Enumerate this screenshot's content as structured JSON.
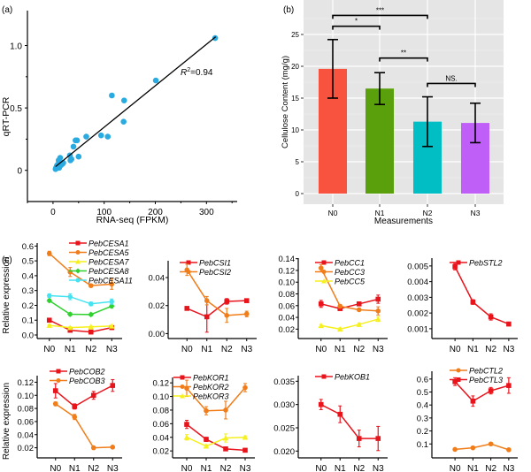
{
  "chart_data": [
    {
      "id": "a",
      "panel_label": "(a)",
      "type": "scatter",
      "xlabel": "RNA-seq (FPKM)",
      "ylabel": "qRT-PCR",
      "xlim": [
        -50,
        360
      ],
      "ylim": [
        -0.25,
        1.28
      ],
      "xticks": [
        0,
        100,
        200,
        300
      ],
      "yticks": [
        0,
        0.5,
        1.0
      ],
      "ytick_labels": [
        "0",
        "0.5",
        "1.0"
      ],
      "annotation": {
        "r2_label": "R",
        "r2_sup": "2",
        "r2_value": "=0.94"
      },
      "color": "#29abe2",
      "fit_line": {
        "x": [
          5,
          318
        ],
        "y": [
          0.03,
          1.07
        ]
      },
      "points": [
        {
          "x": 5,
          "y": 0.01
        },
        {
          "x": 6,
          "y": 0.02
        },
        {
          "x": 7,
          "y": 0.03
        },
        {
          "x": 8,
          "y": 0.04
        },
        {
          "x": 9,
          "y": 0.02
        },
        {
          "x": 10,
          "y": 0.05
        },
        {
          "x": 11,
          "y": 0.08
        },
        {
          "x": 12,
          "y": 0.02
        },
        {
          "x": 13,
          "y": 0.06
        },
        {
          "x": 14,
          "y": 0.1
        },
        {
          "x": 15,
          "y": 0.04
        },
        {
          "x": 18,
          "y": 0.05
        },
        {
          "x": 20,
          "y": 0.06
        },
        {
          "x": 33,
          "y": 0.12
        },
        {
          "x": 34,
          "y": 0.08
        },
        {
          "x": 36,
          "y": 0.09
        },
        {
          "x": 40,
          "y": 0.19
        },
        {
          "x": 44,
          "y": 0.24
        },
        {
          "x": 47,
          "y": 0.24
        },
        {
          "x": 50,
          "y": 0.11
        },
        {
          "x": 65,
          "y": 0.27
        },
        {
          "x": 94,
          "y": 0.28
        },
        {
          "x": 107,
          "y": 0.27
        },
        {
          "x": 115,
          "y": 0.6
        },
        {
          "x": 138,
          "y": 0.39
        },
        {
          "x": 139,
          "y": 0.56
        },
        {
          "x": 201,
          "y": 0.72
        },
        {
          "x": 317,
          "y": 1.06
        }
      ]
    },
    {
      "id": "b",
      "panel_label": "(b)",
      "type": "bar",
      "xlabel": "Measurements",
      "ylabel": "Cellulose Content (mg/g)",
      "ylim": [
        -2.5,
        29
      ],
      "yticks": [
        0,
        5,
        10,
        15,
        20,
        25
      ],
      "categories": [
        "N0",
        "N1",
        "N2",
        "N3"
      ],
      "values": [
        19.6,
        16.5,
        11.3,
        11.1
      ],
      "errors": [
        4.6,
        2.5,
        3.9,
        3.1
      ],
      "colors": [
        "#f8533e",
        "#5aa00c",
        "#00bec4",
        "#c05ff7"
      ],
      "background": "#e5e5e5",
      "grid": true,
      "significance": [
        {
          "from": 0,
          "to": 2,
          "label": "***",
          "level": 28.0
        },
        {
          "from": 0,
          "to": 1,
          "label": "*",
          "level": 26.3
        },
        {
          "from": 1,
          "to": 2,
          "label": "**",
          "level": 21.3
        },
        {
          "from": 2,
          "to": 3,
          "label": "NS.",
          "level": 17.3
        }
      ]
    },
    {
      "id": "c1",
      "panel_label": "(c)",
      "type": "line",
      "ylabel": "Relative expression",
      "categories": [
        "N0",
        "N1",
        "N2",
        "N3"
      ],
      "ylim": [
        0,
        0.62
      ],
      "yticks": [
        0.0,
        0.1,
        0.2,
        0.3,
        0.4,
        0.5,
        0.6
      ],
      "ytick_labels": [
        "0.0",
        "0.1",
        "0.2",
        "0.3",
        "0.4",
        "0.5",
        "0.6"
      ],
      "series": [
        {
          "name": "PebCESA1",
          "color": "#e8141c",
          "marker": "square",
          "values": [
            0.1,
            0.032,
            0.02,
            0.05
          ],
          "errors": [
            0.008,
            0.005,
            0.005,
            0.006
          ]
        },
        {
          "name": "PebCESA5",
          "color": "#f07d19",
          "marker": "circle",
          "values": [
            0.55,
            0.425,
            0.333,
            0.343
          ],
          "errors": [
            0.015,
            0.03,
            0.01,
            0.035
          ]
        },
        {
          "name": "PebCESA7",
          "color": "#f5f01e",
          "marker": "triangle",
          "values": [
            0.065,
            0.05,
            0.055,
            0.06
          ],
          "errors": [
            0.005,
            0.005,
            0.005,
            0.005
          ]
        },
        {
          "name": "PebCESA8",
          "color": "#2ed12e",
          "marker": "diamond",
          "values": [
            0.232,
            0.14,
            0.138,
            0.195
          ],
          "errors": [
            0.01,
            0.01,
            0.01,
            0.012
          ]
        },
        {
          "name": "PebCESA11",
          "color": "#45e3f2",
          "marker": "star",
          "values": [
            0.265,
            0.258,
            0.21,
            0.225
          ],
          "errors": [
            0.012,
            0.02,
            0.012,
            0.018
          ]
        }
      ]
    },
    {
      "id": "c2",
      "type": "line",
      "categories": [
        "N0",
        "N1",
        "N2",
        "N3"
      ],
      "ylim": [
        -0.001,
        0.052
      ],
      "yticks": [
        0.0,
        0.02,
        0.04
      ],
      "ytick_labels": [
        "0.00",
        "0.02",
        "0.04"
      ],
      "series": [
        {
          "name": "PebCSI1",
          "color": "#e8141c",
          "marker": "square",
          "values": [
            0.018,
            0.012,
            0.023,
            0.0235
          ],
          "errors": [
            0.001,
            0.011,
            0.002,
            0.001
          ]
        },
        {
          "name": "PebCSI2",
          "color": "#f07d19",
          "marker": "circle",
          "values": [
            0.0455,
            0.0235,
            0.013,
            0.014
          ],
          "errors": [
            0.004,
            0.003,
            0.005,
            0.002
          ]
        }
      ]
    },
    {
      "id": "c3",
      "type": "line",
      "categories": [
        "N0",
        "N1",
        "N2",
        "N3"
      ],
      "ylim": [
        0.01,
        0.141
      ],
      "yticks": [
        0.02,
        0.04,
        0.06,
        0.08,
        0.1,
        0.12,
        0.14
      ],
      "ytick_labels": [
        "0.02",
        "0.04",
        "0.06",
        "0.08",
        "0.10",
        "0.12",
        "0.14"
      ],
      "series": [
        {
          "name": "PebCC1",
          "color": "#e8141c",
          "marker": "square",
          "values": [
            0.063,
            0.055,
            0.063,
            0.071
          ],
          "errors": [
            0.006,
            0.003,
            0.002,
            0.007
          ]
        },
        {
          "name": "PebCC3",
          "color": "#f07d19",
          "marker": "circle",
          "values": [
            0.124,
            0.059,
            0.053,
            0.051
          ],
          "errors": [
            0.006,
            0.003,
            0.002,
            0.007
          ]
        },
        {
          "name": "PebCC5",
          "color": "#f5f01e",
          "marker": "triangle",
          "values": [
            0.026,
            0.02,
            0.028,
            0.037
          ],
          "errors": [
            0.002,
            0.002,
            0.002,
            0.004
          ]
        }
      ]
    },
    {
      "id": "c4",
      "type": "line",
      "categories": [
        "N0",
        "N1",
        "N2",
        "N3"
      ],
      "ylim": [
        0.0006,
        0.0055
      ],
      "yticks": [
        0.001,
        0.002,
        0.003,
        0.004,
        0.005
      ],
      "ytick_labels": [
        "0.001",
        "0.002",
        "0.003",
        "0.004",
        "0.005"
      ],
      "series": [
        {
          "name": "PebSTL2",
          "color": "#e8141c",
          "marker": "square",
          "values": [
            0.00495,
            0.0027,
            0.00175,
            0.0013
          ],
          "errors": [
            0.0002,
            0.00015,
            0.0002,
            0.00012
          ]
        }
      ]
    },
    {
      "id": "c5",
      "type": "line",
      "ylabel": "Relative expression",
      "categories": [
        "N0",
        "N1",
        "N2",
        "N3"
      ],
      "ylim": [
        0.01,
        0.13
      ],
      "yticks": [
        0.02,
        0.04,
        0.06,
        0.08,
        0.1,
        0.12
      ],
      "ytick_labels": [
        "0.02",
        "0.04",
        "0.06",
        "0.08",
        "0.10",
        "0.12"
      ],
      "series": [
        {
          "name": "PebCOB2",
          "color": "#e8141c",
          "marker": "square",
          "values": [
            0.107,
            0.083,
            0.1,
            0.115
          ],
          "errors": [
            0.011,
            0.004,
            0.006,
            0.009
          ]
        },
        {
          "name": "PebCOB3",
          "color": "#f07d19",
          "marker": "circle",
          "values": [
            0.087,
            0.067,
            0.02,
            0.021
          ],
          "errors": [
            0.003,
            0.004,
            0.001,
            0.001
          ]
        }
      ]
    },
    {
      "id": "c6",
      "type": "line",
      "categories": [
        "N0",
        "N1",
        "N2",
        "N3"
      ],
      "ylim": [
        0.015,
        0.128
      ],
      "yticks": [
        0.02,
        0.04,
        0.06,
        0.08,
        0.1,
        0.12
      ],
      "ytick_labels": [
        "0.02",
        "0.04",
        "0.06",
        "0.08",
        "0.10",
        "0.12"
      ],
      "series": [
        {
          "name": "PebKOR1",
          "color": "#e8141c",
          "marker": "square",
          "values": [
            0.059,
            0.037,
            0.023,
            0.021
          ],
          "errors": [
            0.006,
            0.003,
            0.001,
            0.001
          ]
        },
        {
          "name": "PebKOR2",
          "color": "#f07d19",
          "marker": "circle",
          "values": [
            0.112,
            0.079,
            0.08,
            0.113
          ],
          "errors": [
            0.012,
            0.006,
            0.013,
            0.006
          ]
        },
        {
          "name": "PebKOR3",
          "color": "#f5f01e",
          "marker": "triangle",
          "values": [
            0.04,
            0.027,
            0.039,
            0.04
          ],
          "errors": [
            0.004,
            0.002,
            0.006,
            0.002
          ]
        }
      ]
    },
    {
      "id": "c7",
      "type": "line",
      "categories": [
        "N0",
        "N1",
        "N2",
        "N3"
      ],
      "ylim": [
        0.0193,
        0.0362
      ],
      "yticks": [
        0.02,
        0.025,
        0.03,
        0.035
      ],
      "ytick_labels": [
        "0.020",
        "0.025",
        "0.030",
        "0.035"
      ],
      "series": [
        {
          "name": "PebKOB1",
          "color": "#e8141c",
          "marker": "square",
          "values": [
            0.03,
            0.0279,
            0.0227,
            0.0227
          ],
          "errors": [
            0.0011,
            0.0018,
            0.0018,
            0.0026
          ]
        }
      ]
    },
    {
      "id": "c8",
      "type": "line",
      "categories": [
        "N0",
        "N1",
        "N2",
        "N3"
      ],
      "ylim": [
        0.02,
        0.66
      ],
      "yticks": [
        0.1,
        0.2,
        0.3,
        0.4,
        0.5,
        0.6
      ],
      "ytick_labels": [
        "0.1",
        "0.2",
        "0.3",
        "0.4",
        "0.5",
        "0.6"
      ],
      "series": [
        {
          "name": "PebCTL2",
          "color": "#f07d19",
          "marker": "circle",
          "values": [
            0.058,
            0.07,
            0.1,
            0.055
          ],
          "errors": [
            0.003,
            0.003,
            0.004,
            0.003
          ]
        },
        {
          "name": "PebCTL3",
          "color": "#e8141c",
          "marker": "square",
          "values": [
            0.58,
            0.43,
            0.51,
            0.55
          ],
          "errors": [
            0.03,
            0.04,
            0.025,
            0.06
          ]
        }
      ]
    }
  ]
}
